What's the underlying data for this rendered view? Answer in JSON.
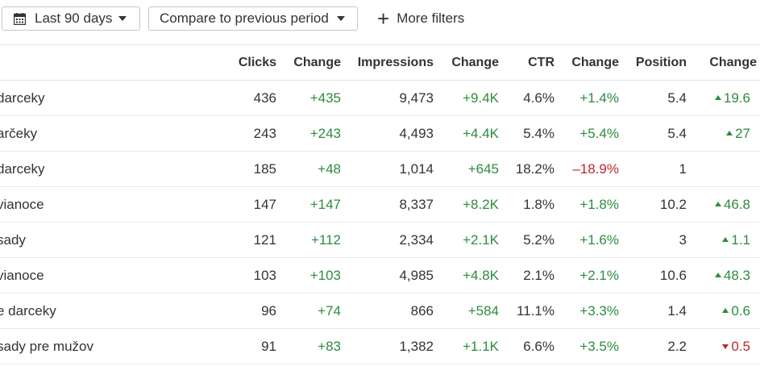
{
  "filters": {
    "date_range": "Last 90 days",
    "compare": "Compare to previous period",
    "more_filters": "More filters"
  },
  "columns": [
    "Clicks",
    "Change",
    "Impressions",
    "Change",
    "CTR",
    "Change",
    "Position",
    "Change"
  ],
  "rows": [
    {
      "keyword": "darceky",
      "clicks": "436",
      "clicks_change": "+435",
      "impressions": "9,473",
      "impressions_change": "+9.4K",
      "ctr": "4.6%",
      "ctr_change": "+1.4%",
      "position": "5.4",
      "position_change": "19.6",
      "position_dir": "up"
    },
    {
      "keyword": "arčeky",
      "clicks": "243",
      "clicks_change": "+243",
      "impressions": "4,493",
      "impressions_change": "+4.4K",
      "ctr": "5.4%",
      "ctr_change": "+5.4%",
      "position": "5.4",
      "position_change": "27",
      "position_dir": "up"
    },
    {
      "keyword": "darceky",
      "clicks": "185",
      "clicks_change": "+48",
      "impressions": "1,014",
      "impressions_change": "+645",
      "ctr": "18.2%",
      "ctr_change": "–18.9%",
      "position": "1",
      "position_change": "",
      "position_dir": "none",
      "ctr_change_negative": true
    },
    {
      "keyword": " vianoce",
      "clicks": "147",
      "clicks_change": "+147",
      "impressions": "8,337",
      "impressions_change": "+8.2K",
      "ctr": "1.8%",
      "ctr_change": "+1.8%",
      "position": "10.2",
      "position_change": "46.8",
      "position_dir": "up"
    },
    {
      "keyword": "sady",
      "clicks": "121",
      "clicks_change": "+112",
      "impressions": "2,334",
      "impressions_change": "+2.1K",
      "ctr": "5.2%",
      "ctr_change": "+1.6%",
      "position": "3",
      "position_change": "1.1",
      "position_dir": "up"
    },
    {
      "keyword": " vianoce",
      "clicks": "103",
      "clicks_change": "+103",
      "impressions": "4,985",
      "impressions_change": "+4.8K",
      "ctr": "2.1%",
      "ctr_change": "+2.1%",
      "position": "10.6",
      "position_change": "48.3",
      "position_dir": "up"
    },
    {
      "keyword": "e darceky",
      "clicks": "96",
      "clicks_change": "+74",
      "impressions": "866",
      "impressions_change": "+584",
      "ctr": "11.1%",
      "ctr_change": "+3.3%",
      "position": "1.4",
      "position_change": "0.6",
      "position_dir": "up"
    },
    {
      "keyword": "sady pre mužov",
      "clicks": "91",
      "clicks_change": "+83",
      "impressions": "1,382",
      "impressions_change": "+1.1K",
      "ctr": "6.6%",
      "ctr_change": "+3.5%",
      "position": "2.2",
      "position_change": "0.5",
      "position_dir": "down"
    }
  ],
  "colors": {
    "positive": "#2e8b3e",
    "negative": "#c0282d"
  }
}
